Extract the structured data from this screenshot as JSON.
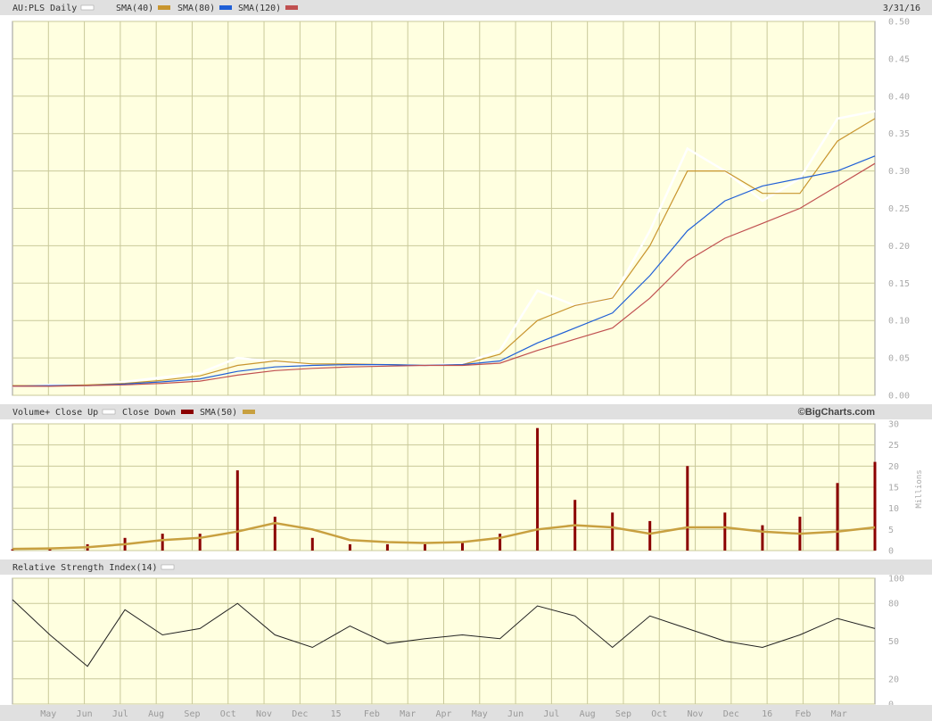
{
  "header": {
    "ticker_label": "AU:PLS Daily",
    "sma1_label": "SMA(40)",
    "sma2_label": "SMA(80)",
    "sma3_label": "SMA(120)",
    "date_label": "3/31/16",
    "colors": {
      "price": "#ffffff",
      "sma1": "#c8952e",
      "sma2": "#1f5fd6",
      "sma3": "#c05050"
    }
  },
  "volume_header": {
    "volume_label": "Volume+",
    "close_up_label": "Close Up",
    "close_down_label": "Close Down",
    "sma_label": "SMA(50)",
    "copyright": "©BigCharts.com",
    "unit_label": "Millions",
    "colors": {
      "up": "#ffffff",
      "down": "#8b0000",
      "sma": "#c8a040"
    }
  },
  "rsi_header": {
    "label": "Relative Strength Index(14)"
  },
  "x_axis": {
    "months": [
      "May",
      "Jun",
      "Jul",
      "Aug",
      "Sep",
      "Oct",
      "Nov",
      "Dec",
      "15",
      "Feb",
      "Mar",
      "Apr",
      "May",
      "Jun",
      "Jul",
      "Aug",
      "Sep",
      "Oct",
      "Nov",
      "Dec",
      "16",
      "Feb",
      "Mar"
    ]
  },
  "chart_data": [
    {
      "type": "line",
      "title": "AU:PLS Daily",
      "x_range": [
        "2014-04-01",
        "2016-03-31"
      ],
      "ylim": [
        0,
        0.5
      ],
      "y_ticks": [
        "0.00",
        "0.05",
        "0.10",
        "0.15",
        "0.20",
        "0.25",
        "0.30",
        "0.35",
        "0.40",
        "0.45",
        "0.50"
      ],
      "grid": true,
      "legend": "top-left",
      "x": [
        "2014-04",
        "2014-05",
        "2014-06",
        "2014-07",
        "2014-08",
        "2014-09",
        "2014-10",
        "2014-11",
        "2014-12",
        "2015-01",
        "2015-02",
        "2015-03",
        "2015-04",
        "2015-05",
        "2015-06",
        "2015-07",
        "2015-08",
        "2015-09",
        "2015-10",
        "2015-11",
        "2015-12",
        "2016-01",
        "2016-02",
        "2016-03"
      ],
      "series": [
        {
          "name": "AU:PLS Daily",
          "values": [
            0.012,
            0.014,
            0.013,
            0.018,
            0.024,
            0.03,
            0.05,
            0.045,
            0.04,
            0.042,
            0.04,
            0.04,
            0.042,
            0.06,
            0.14,
            0.12,
            0.13,
            0.22,
            0.33,
            0.3,
            0.26,
            0.29,
            0.37,
            0.38
          ]
        },
        {
          "name": "SMA(40)",
          "values": [
            0.013,
            0.013,
            0.014,
            0.016,
            0.02,
            0.026,
            0.04,
            0.046,
            0.042,
            0.042,
            0.041,
            0.04,
            0.041,
            0.055,
            0.1,
            0.12,
            0.13,
            0.2,
            0.3,
            0.3,
            0.27,
            0.27,
            0.34,
            0.37
          ]
        },
        {
          "name": "SMA(80)",
          "values": [
            0.012,
            0.013,
            0.013,
            0.015,
            0.018,
            0.022,
            0.032,
            0.038,
            0.04,
            0.041,
            0.041,
            0.04,
            0.041,
            0.046,
            0.07,
            0.09,
            0.11,
            0.16,
            0.22,
            0.26,
            0.28,
            0.29,
            0.3,
            0.32
          ]
        },
        {
          "name": "SMA(120)",
          "values": [
            0.012,
            0.012,
            0.013,
            0.014,
            0.016,
            0.019,
            0.027,
            0.033,
            0.036,
            0.038,
            0.039,
            0.04,
            0.04,
            0.043,
            0.06,
            0.075,
            0.09,
            0.13,
            0.18,
            0.21,
            0.23,
            0.25,
            0.28,
            0.31
          ]
        }
      ]
    },
    {
      "type": "bar",
      "title": "Volume+",
      "ylabel": "Millions",
      "ylim": [
        0,
        30
      ],
      "y_ticks": [
        "0",
        "5",
        "10",
        "15",
        "20",
        "25",
        "30"
      ],
      "grid": true,
      "x": [
        "2014-04",
        "2014-05",
        "2014-06",
        "2014-07",
        "2014-08",
        "2014-09",
        "2014-10",
        "2014-11",
        "2014-12",
        "2015-01",
        "2015-02",
        "2015-03",
        "2015-04",
        "2015-05",
        "2015-06",
        "2015-07",
        "2015-08",
        "2015-09",
        "2015-10",
        "2015-11",
        "2015-12",
        "2016-01",
        "2016-02",
        "2016-03"
      ],
      "series": [
        {
          "name": "Close Down",
          "values": [
            0.3,
            0.5,
            1.5,
            3,
            4,
            4,
            19,
            8,
            3,
            1.5,
            1.5,
            1.5,
            2,
            4,
            29,
            12,
            9,
            7,
            20,
            9,
            6,
            8,
            16,
            21
          ]
        },
        {
          "name": "SMA(50)",
          "values": [
            0.4,
            0.5,
            0.8,
            1.5,
            2.5,
            3,
            4.5,
            6.5,
            5,
            2.5,
            2,
            1.8,
            2,
            3,
            5,
            6,
            5.5,
            4,
            5.5,
            5.5,
            4.5,
            4,
            4.5,
            5.5
          ]
        }
      ]
    },
    {
      "type": "line",
      "title": "Relative Strength Index(14)",
      "ylim": [
        0,
        100
      ],
      "y_ticks": [
        "0",
        "20",
        "50",
        "80",
        "100"
      ],
      "grid": true,
      "x": [
        "2014-04",
        "2014-05",
        "2014-06",
        "2014-07",
        "2014-08",
        "2014-09",
        "2014-10",
        "2014-11",
        "2014-12",
        "2015-01",
        "2015-02",
        "2015-03",
        "2015-04",
        "2015-05",
        "2015-06",
        "2015-07",
        "2015-08",
        "2015-09",
        "2015-10",
        "2015-11",
        "2015-12",
        "2016-01",
        "2016-02",
        "2016-03"
      ],
      "series": [
        {
          "name": "Relative Strength Index(14)",
          "values": [
            83,
            55,
            30,
            75,
            55,
            60,
            80,
            55,
            45,
            62,
            48,
            52,
            55,
            52,
            78,
            70,
            45,
            70,
            60,
            50,
            45,
            55,
            68,
            60
          ]
        }
      ]
    }
  ]
}
